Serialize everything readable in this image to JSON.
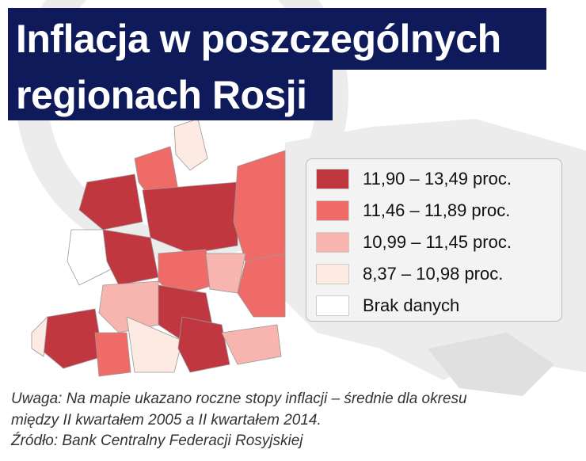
{
  "title": [
    "Inflacja w poszczególnych",
    "regionach Rosji"
  ],
  "legend": [
    {
      "label": "11,90 – 13,49 proc.",
      "color": "#c1373f"
    },
    {
      "label": "11,46 – 11,89 proc.",
      "color": "#ef6b68"
    },
    {
      "label": "10,99 – 11,45 proc.",
      "color": "#f8b5b0"
    },
    {
      "label": "8,37 – 10,98 proc.",
      "color": "#fdeae3"
    },
    {
      "label": "Brak danych",
      "color": "#ffffff"
    }
  ],
  "notes": [
    "Uwaga: Na mapie ukazano roczne stopy inflacji – średnie dla okresu",
    "między II kwartałem 2005 a II kwartałem 2014.",
    "Źródło: Bank Centralny Federacji Rosyjskiej"
  ]
}
